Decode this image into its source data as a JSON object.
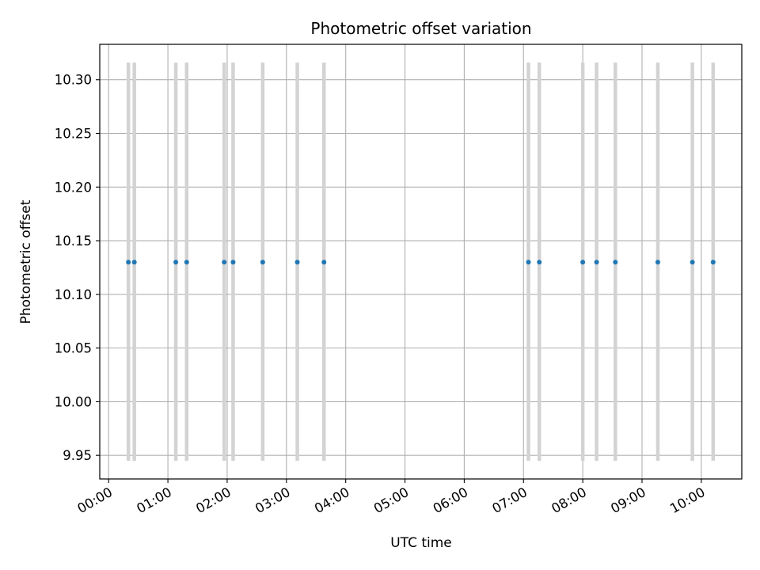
{
  "chart_data": {
    "type": "scatter",
    "title": "Photometric offset variation",
    "xlabel": "UTC time",
    "ylabel": "Photometric offset",
    "xlim": [
      "-00:09",
      "10:41"
    ],
    "ylim": [
      9.928,
      10.333
    ],
    "grid": true,
    "xticks": [
      "00:00",
      "01:00",
      "02:00",
      "03:00",
      "04:00",
      "05:00",
      "06:00",
      "07:00",
      "08:00",
      "09:00",
      "10:00"
    ],
    "yticks": [
      "9.95",
      "10.00",
      "10.05",
      "10.10",
      "10.15",
      "10.20",
      "10.25",
      "10.30"
    ],
    "yticks_values": [
      9.95,
      10.0,
      10.05,
      10.1,
      10.15,
      10.2,
      10.25,
      10.3
    ],
    "span_y": [
      9.945,
      10.316
    ],
    "series": [
      {
        "x": [
          "00:20",
          "00:26",
          "01:08",
          "01:19",
          "01:57",
          "02:06",
          "02:36",
          "03:11",
          "03:38",
          "07:05",
          "07:16",
          "08:00",
          "08:14",
          "08:33",
          "09:16",
          "09:51",
          "10:12"
        ],
        "y": [
          10.13,
          10.13,
          10.13,
          10.13,
          10.13,
          10.13,
          10.13,
          10.13,
          10.13,
          10.13,
          10.13,
          10.13,
          10.13,
          10.13,
          10.13,
          10.13,
          10.13
        ]
      }
    ],
    "colors": {
      "points": "#1f77b4",
      "spans": "#d3d3d3",
      "grid": "#b0b0b0",
      "axes": "#000000"
    }
  }
}
